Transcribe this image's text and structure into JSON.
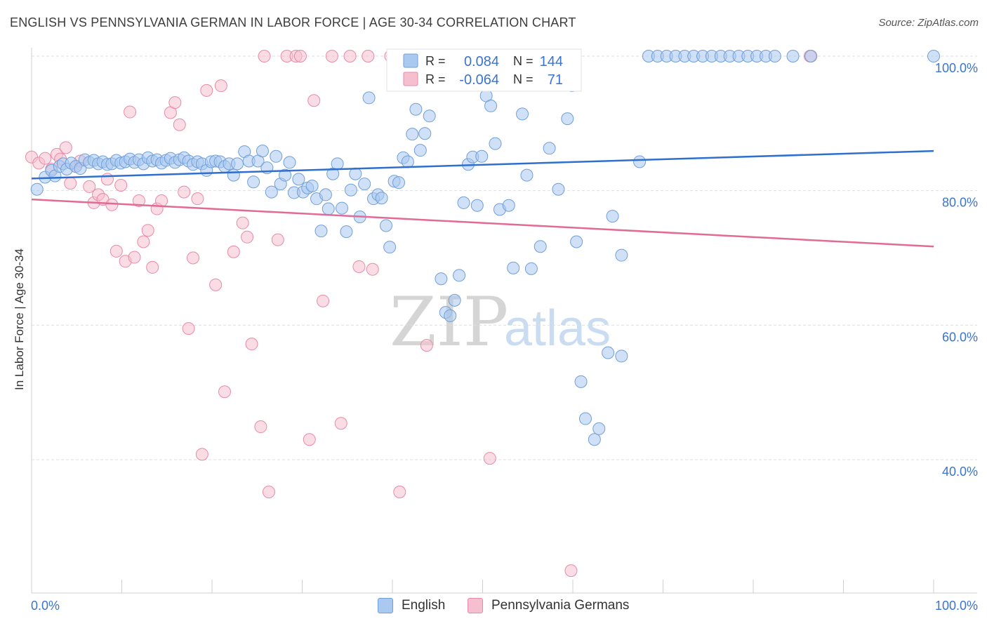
{
  "title": "ENGLISH VS PENNSYLVANIA GERMAN IN LABOR FORCE | AGE 30-34 CORRELATION CHART",
  "source": "Source: ZipAtlas.com",
  "watermark": {
    "zip": "ZIP",
    "atlas": "atlas"
  },
  "colors": {
    "english_fill": "#a9c9f0",
    "english_stroke": "#6f9fd9",
    "english_line": "#2f6fce",
    "pg_fill": "#f6bfd0",
    "pg_stroke": "#e88aa8",
    "pg_line": "#e26b96",
    "tick_text": "#3b74cf",
    "grid": "#dedede"
  },
  "legend": {
    "rows": [
      {
        "r_label": "R =",
        "r_value": "0.084",
        "n_label": "N =",
        "n_value": "144"
      },
      {
        "r_label": "R =",
        "r_value": "-0.064",
        "n_label": "N =",
        "n_value": "71"
      }
    ]
  },
  "bottom_legend": {
    "english": "English",
    "pg": "Pennsylvania Germans"
  },
  "chart_data": {
    "type": "scatter",
    "xlabel": "",
    "ylabel": "In Labor Force | Age 30-34",
    "xlim": [
      0,
      100
    ],
    "ylim": [
      20,
      102
    ],
    "x_tick_labels": [
      "0.0%",
      "100.0%"
    ],
    "y_ticks": [
      40,
      60,
      80,
      100
    ],
    "y_tick_labels": [
      "40.0%",
      "60.0%",
      "80.0%",
      "100.0%"
    ],
    "grid": true,
    "legend_position": "top-center",
    "series": [
      {
        "name": "English",
        "r": 0.084,
        "n": 144,
        "trend": {
          "x": [
            0,
            100
          ],
          "y": [
            81.8,
            85.9
          ]
        },
        "points": [
          [
            0.6,
            80.2
          ],
          [
            1.5,
            82.0
          ],
          [
            2.2,
            83.0
          ],
          [
            2.6,
            82.2
          ],
          [
            3.1,
            83.6
          ],
          [
            3.5,
            84.0
          ],
          [
            3.9,
            83.2
          ],
          [
            4.4,
            84.1
          ],
          [
            4.9,
            83.6
          ],
          [
            5.4,
            83.3
          ],
          [
            5.9,
            84.6
          ],
          [
            6.4,
            84.2
          ],
          [
            6.9,
            84.5
          ],
          [
            7.4,
            84.0
          ],
          [
            7.9,
            84.3
          ],
          [
            8.4,
            83.9
          ],
          [
            8.9,
            84.0
          ],
          [
            9.4,
            84.5
          ],
          [
            9.9,
            84.1
          ],
          [
            10.4,
            84.3
          ],
          [
            10.9,
            84.7
          ],
          [
            11.4,
            84.2
          ],
          [
            11.9,
            84.6
          ],
          [
            12.4,
            84.0
          ],
          [
            12.9,
            84.9
          ],
          [
            13.4,
            84.4
          ],
          [
            13.9,
            84.6
          ],
          [
            14.4,
            84.1
          ],
          [
            14.9,
            84.5
          ],
          [
            15.4,
            84.8
          ],
          [
            15.9,
            84.2
          ],
          [
            16.4,
            84.6
          ],
          [
            16.9,
            84.9
          ],
          [
            17.4,
            84.4
          ],
          [
            17.9,
            83.9
          ],
          [
            18.4,
            84.3
          ],
          [
            18.9,
            84.0
          ],
          [
            19.4,
            83.0
          ],
          [
            19.9,
            84.3
          ],
          [
            20.4,
            84.4
          ],
          [
            20.9,
            84.3
          ],
          [
            21.4,
            83.6
          ],
          [
            21.9,
            84.0
          ],
          [
            22.4,
            82.3
          ],
          [
            22.8,
            84.0
          ],
          [
            23.6,
            85.8
          ],
          [
            24.1,
            84.4
          ],
          [
            24.6,
            81.3
          ],
          [
            25.1,
            84.4
          ],
          [
            25.6,
            85.9
          ],
          [
            26.1,
            83.4
          ],
          [
            26.6,
            79.8
          ],
          [
            27.1,
            85.1
          ],
          [
            27.6,
            81.0
          ],
          [
            28.1,
            82.3
          ],
          [
            28.6,
            84.2
          ],
          [
            29.1,
            79.7
          ],
          [
            29.6,
            81.7
          ],
          [
            30.1,
            79.8
          ],
          [
            30.6,
            80.4
          ],
          [
            31.1,
            80.7
          ],
          [
            31.6,
            78.8
          ],
          [
            32.1,
            74.0
          ],
          [
            32.6,
            79.4
          ],
          [
            32.9,
            77.3
          ],
          [
            33.4,
            82.5
          ],
          [
            33.9,
            84.0
          ],
          [
            34.4,
            77.4
          ],
          [
            34.9,
            73.9
          ],
          [
            35.4,
            80.1
          ],
          [
            35.9,
            82.5
          ],
          [
            36.4,
            76.1
          ],
          [
            36.9,
            81.0
          ],
          [
            37.4,
            93.8
          ],
          [
            37.9,
            78.8
          ],
          [
            38.4,
            79.4
          ],
          [
            38.8,
            78.9
          ],
          [
            39.3,
            74.8
          ],
          [
            39.7,
            71.6
          ],
          [
            40.2,
            81.4
          ],
          [
            40.7,
            81.2
          ],
          [
            41.2,
            84.9
          ],
          [
            41.7,
            84.3
          ],
          [
            42.2,
            88.4
          ],
          [
            42.6,
            92.1
          ],
          [
            43.1,
            86.0
          ],
          [
            43.6,
            88.5
          ],
          [
            44.1,
            91.1
          ],
          [
            45.4,
            66.9
          ],
          [
            45.9,
            61.9
          ],
          [
            46.4,
            61.4
          ],
          [
            46.9,
            63.7
          ],
          [
            47.4,
            67.4
          ],
          [
            47.9,
            78.2
          ],
          [
            48.4,
            83.9
          ],
          [
            48.9,
            85.0
          ],
          [
            49.4,
            77.8
          ],
          [
            49.9,
            85.1
          ],
          [
            50.4,
            94.1
          ],
          [
            50.9,
            92.6
          ],
          [
            51.4,
            87.0
          ],
          [
            51.9,
            77.2
          ],
          [
            52.9,
            77.8
          ],
          [
            53.4,
            68.5
          ],
          [
            54.4,
            91.4
          ],
          [
            54.9,
            82.3
          ],
          [
            55.4,
            68.4
          ],
          [
            56.4,
            71.7
          ],
          [
            57.4,
            86.3
          ],
          [
            58.4,
            80.2
          ],
          [
            59.4,
            90.7
          ],
          [
            59.9,
            95.6
          ],
          [
            60.4,
            72.4
          ],
          [
            60.9,
            51.6
          ],
          [
            61.4,
            46.1
          ],
          [
            62.4,
            43.0
          ],
          [
            62.9,
            44.6
          ],
          [
            63.9,
            55.9
          ],
          [
            64.4,
            76.2
          ],
          [
            65.4,
            70.4
          ],
          [
            65.4,
            55.4
          ],
          [
            67.4,
            84.3
          ],
          [
            68.4,
            100
          ],
          [
            69.4,
            100
          ],
          [
            70.4,
            100
          ],
          [
            71.4,
            100
          ],
          [
            72.4,
            100
          ],
          [
            73.4,
            100
          ],
          [
            74.4,
            100
          ],
          [
            75.4,
            100
          ],
          [
            76.4,
            100
          ],
          [
            77.4,
            100
          ],
          [
            78.4,
            100
          ],
          [
            79.4,
            100
          ],
          [
            80.4,
            100
          ],
          [
            81.4,
            100
          ],
          [
            82.4,
            100
          ],
          [
            84.4,
            100
          ],
          [
            86.4,
            100
          ],
          [
            100,
            100
          ]
        ]
      },
      {
        "name": "Pennsylvania Germans",
        "r": -0.064,
        "n": 71,
        "trend": {
          "x": [
            0,
            100
          ],
          "y": [
            78.7,
            71.7
          ]
        },
        "points": [
          [
            0.0,
            85.0
          ],
          [
            0.8,
            84.1
          ],
          [
            1.5,
            84.8
          ],
          [
            2.2,
            83.2
          ],
          [
            2.8,
            85.4
          ],
          [
            3.2,
            84.7
          ],
          [
            3.8,
            86.4
          ],
          [
            4.3,
            81.1
          ],
          [
            4.9,
            83.6
          ],
          [
            5.4,
            84.4
          ],
          [
            6.4,
            80.6
          ],
          [
            6.9,
            78.2
          ],
          [
            7.4,
            79.4
          ],
          [
            7.9,
            78.7
          ],
          [
            8.4,
            81.7
          ],
          [
            8.9,
            77.9
          ],
          [
            9.4,
            71.0
          ],
          [
            9.9,
            80.8
          ],
          [
            10.4,
            69.5
          ],
          [
            10.9,
            91.7
          ],
          [
            11.4,
            70.1
          ],
          [
            11.9,
            78.5
          ],
          [
            12.4,
            72.4
          ],
          [
            12.9,
            74.1
          ],
          [
            13.4,
            68.6
          ],
          [
            13.9,
            77.3
          ],
          [
            14.4,
            78.5
          ],
          [
            15.4,
            91.6
          ],
          [
            15.9,
            93.1
          ],
          [
            16.4,
            89.8
          ],
          [
            16.9,
            79.8
          ],
          [
            17.4,
            59.5
          ],
          [
            17.9,
            70.0
          ],
          [
            18.4,
            78.8
          ],
          [
            18.9,
            40.8
          ],
          [
            19.4,
            94.9
          ],
          [
            20.4,
            66.0
          ],
          [
            21.0,
            95.6
          ],
          [
            21.4,
            50.1
          ],
          [
            22.4,
            70.9
          ],
          [
            23.4,
            75.2
          ],
          [
            23.9,
            73.1
          ],
          [
            24.4,
            57.2
          ],
          [
            25.4,
            44.9
          ],
          [
            25.8,
            100
          ],
          [
            26.3,
            35.2
          ],
          [
            27.3,
            72.7
          ],
          [
            28.3,
            100
          ],
          [
            29.3,
            100
          ],
          [
            29.8,
            100
          ],
          [
            30.8,
            43.0
          ],
          [
            31.3,
            93.4
          ],
          [
            32.3,
            63.6
          ],
          [
            33.3,
            100
          ],
          [
            34.3,
            45.4
          ],
          [
            35.3,
            100
          ],
          [
            36.3,
            68.7
          ],
          [
            37.3,
            100
          ],
          [
            37.8,
            68.3
          ],
          [
            39.8,
            100
          ],
          [
            40.8,
            35.2
          ],
          [
            41.8,
            100
          ],
          [
            42.8,
            100
          ],
          [
            43.8,
            57.0
          ],
          [
            44.8,
            100
          ],
          [
            45.8,
            100
          ],
          [
            50.8,
            40.2
          ],
          [
            54.8,
            100
          ],
          [
            57.8,
            100
          ],
          [
            59.8,
            23.5
          ],
          [
            86.3,
            100
          ]
        ]
      }
    ]
  }
}
